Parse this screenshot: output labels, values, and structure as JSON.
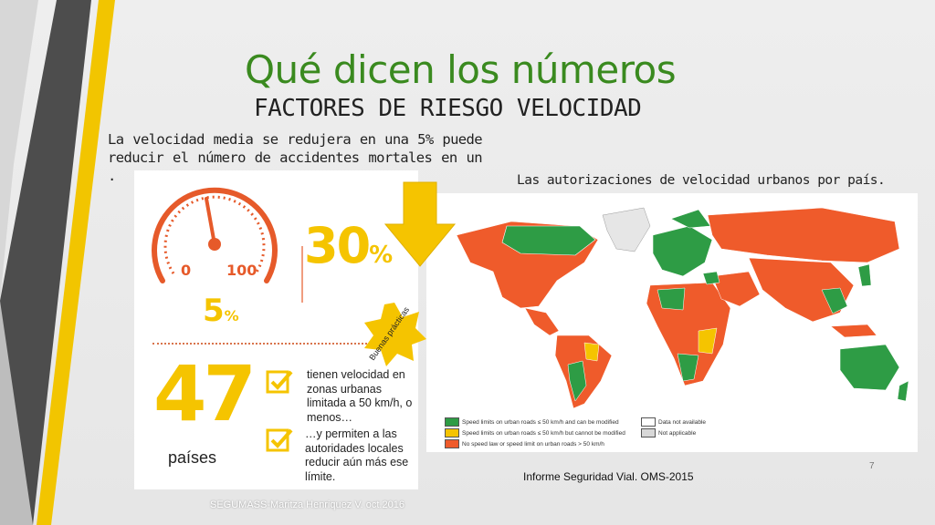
{
  "slide": {
    "title": "Qué dicen los números",
    "subtitle": "FACTORES DE RIESGO VELOCIDAD",
    "intro": "La velocidad media se redujera en una 5% puede reducir el número de accidentes mortales en un .",
    "map_caption": "Las autorizaciones de velocidad urbanos por país.",
    "source": "Informe Seguridad Vial. OMS-2015",
    "page_number": "7",
    "footer": "SEGUMASS-Maritza Henriquez V. oct.2016"
  },
  "infographic": {
    "gauge_min": "0",
    "gauge_max": "100",
    "pct_big": "30",
    "pct_big_unit": "%",
    "pct_small": "5",
    "pct_small_unit": "%",
    "badge": "Buenas prácticas",
    "count": "47",
    "count_label": "países",
    "text1": "tienen velocidad en zonas urbanas limitada a 50 km/h, o menos…",
    "text2": "…y permiten a las autoridades locales reducir aún más ese límite."
  },
  "map_legend": [
    {
      "label": "Speed limits on urban roads ≤ 50 km/h and can be modified",
      "color": "#2e9c45"
    },
    {
      "label": "Speed limits on urban roads ≤ 50 km/h but cannot be modified",
      "color": "#f5c400"
    },
    {
      "label": "No speed law or speed limit on urban roads > 50 km/h",
      "color": "#ef5b2b"
    },
    {
      "label": "Data not available",
      "color": "#ffffff"
    },
    {
      "label": "Not applicable",
      "color": "#d8d8d8"
    }
  ],
  "colors": {
    "title_green": "#3a8a1f",
    "accent_yellow": "#f5c400",
    "map_green": "#2e9c45",
    "map_orange": "#ef5b2b",
    "deco_gray": "#555555"
  },
  "icons": {
    "arrow": "down-arrow-icon",
    "checkbox": "check-box-icon",
    "gauge": "speedometer-icon"
  }
}
